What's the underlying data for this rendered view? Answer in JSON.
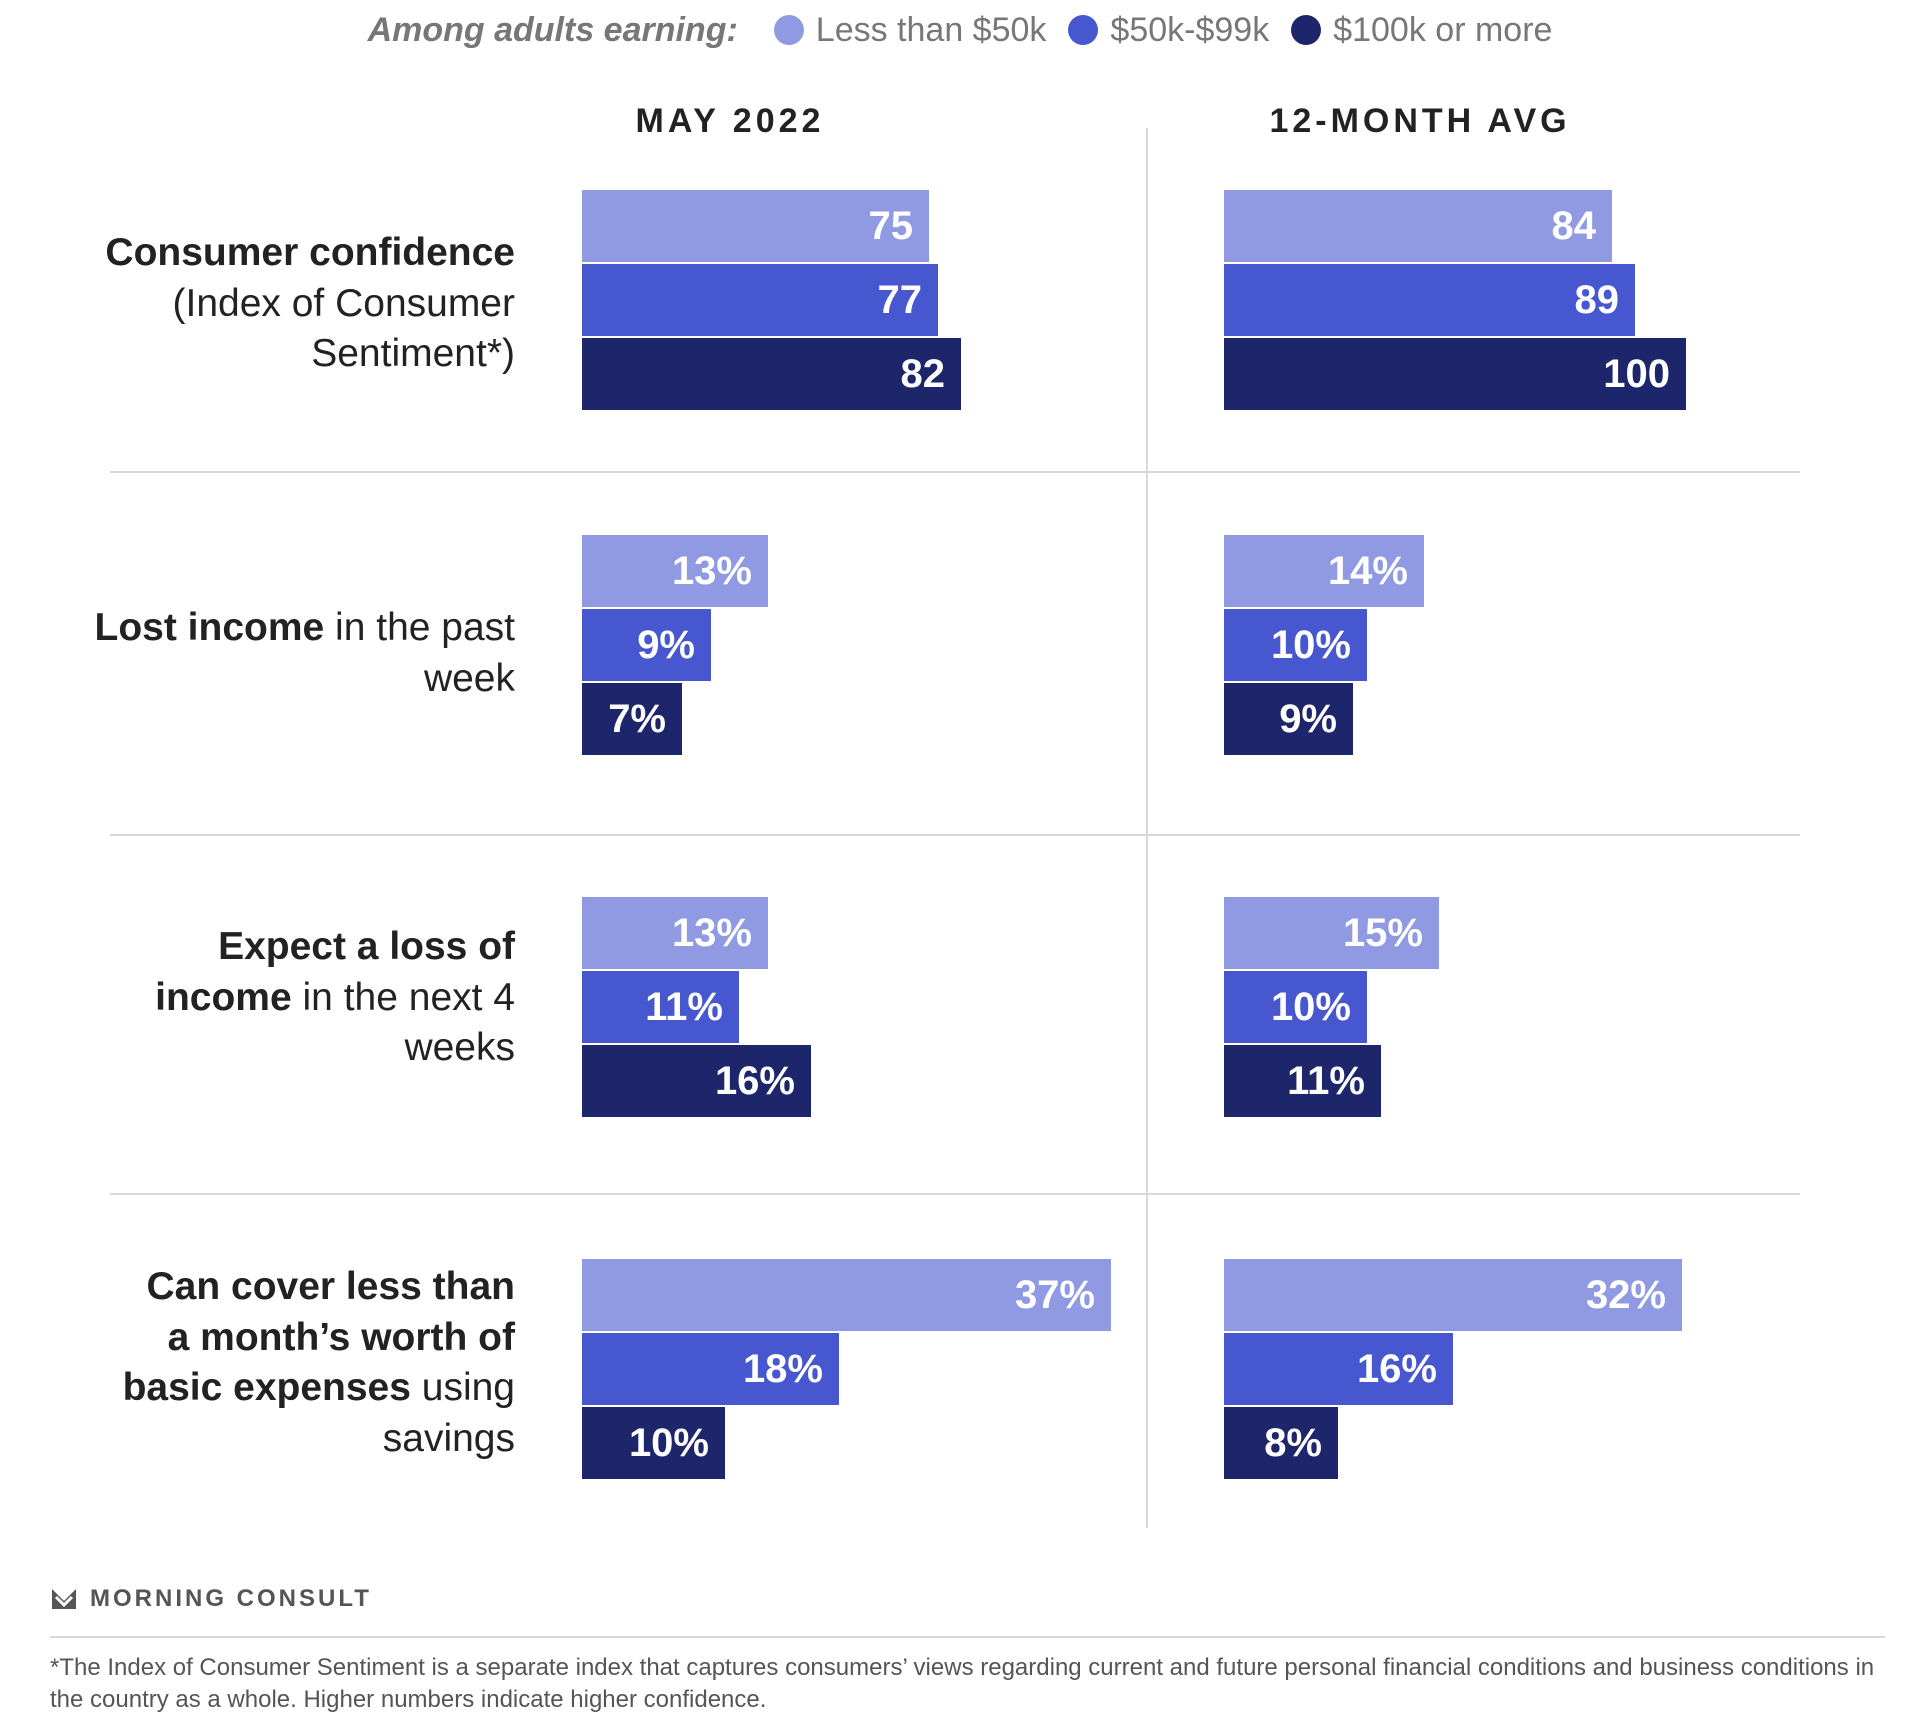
{
  "legend": {
    "lead": "Among adults earning:",
    "items": [
      {
        "label": "Less than $50k",
        "color": "#8f9ae2"
      },
      {
        "label": "$50k-$99k",
        "color": "#4657cf"
      },
      {
        "label": "$100k or more",
        "color": "#1e266b"
      }
    ]
  },
  "columns": [
    "MAY 2022",
    "12-MONTH AVG"
  ],
  "rows": [
    {
      "bold": "Consumer confidence",
      "rest": "(Index of Consumer Sentiment*)"
    },
    {
      "bold": "Lost income",
      "rest": " in the past week"
    },
    {
      "bold": "Expect a loss of income",
      "rest": " in the next 4 weeks"
    },
    {
      "bold": "Can cover less than a month’s worth of basic expenses",
      "rest": " using savings"
    }
  ],
  "chart_data": {
    "type": "bar",
    "orientation": "horizontal",
    "series": [
      {
        "name": "Less than $50k",
        "color": "#8f9ae2"
      },
      {
        "name": "$50k-$99k",
        "color": "#4657cf"
      },
      {
        "name": "$100k or more",
        "color": "#1e266b"
      }
    ],
    "panels": [
      {
        "column": "MAY 2022",
        "groups": [
          {
            "values": [
              75,
              77,
              82
            ],
            "labels": [
              "75",
              "77",
              "82"
            ]
          },
          {
            "values": [
              13,
              9,
              7
            ],
            "labels": [
              "13%",
              "9%",
              "7%"
            ]
          },
          {
            "values": [
              13,
              11,
              16
            ],
            "labels": [
              "13%",
              "11%",
              "16%"
            ]
          },
          {
            "values": [
              37,
              18,
              10
            ],
            "labels": [
              "37%",
              "18%",
              "10%"
            ]
          }
        ]
      },
      {
        "column": "12-MONTH AVG",
        "groups": [
          {
            "values": [
              84,
              89,
              100
            ],
            "labels": [
              "84",
              "89",
              "100"
            ]
          },
          {
            "values": [
              14,
              10,
              9
            ],
            "labels": [
              "14%",
              "10%",
              "9%"
            ]
          },
          {
            "values": [
              15,
              10,
              11
            ],
            "labels": [
              "15%",
              "10%",
              "11%"
            ]
          },
          {
            "values": [
              32,
              16,
              8
            ],
            "labels": [
              "32%",
              "16%",
              "8%"
            ]
          }
        ]
      }
    ]
  },
  "footer": {
    "brand": "MORNING CONSULT",
    "note": "*The Index of Consumer Sentiment is a separate index that captures consumers’ views regarding current and future personal financial conditions and business conditions in the country as a whole. Higher numbers indicate higher confidence."
  }
}
